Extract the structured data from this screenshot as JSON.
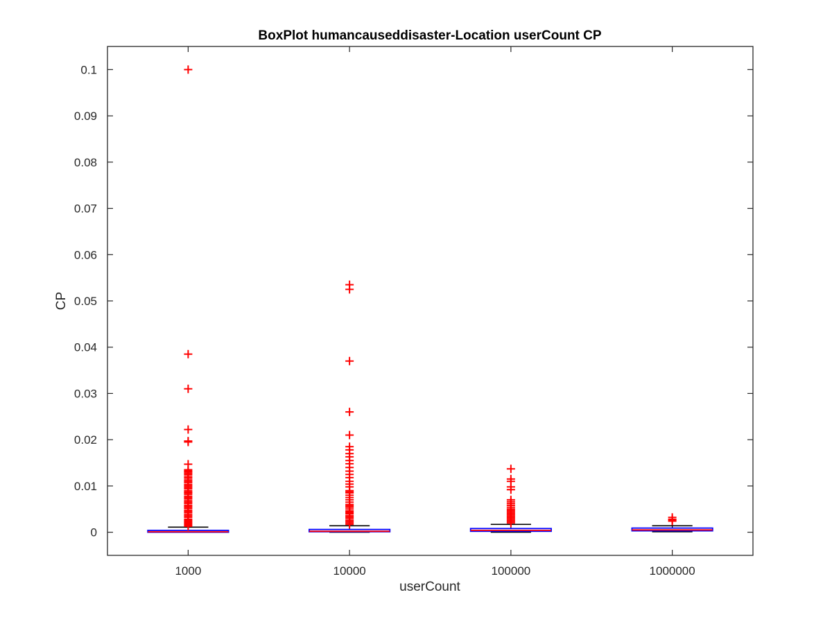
{
  "chart_data": {
    "type": "boxplot",
    "title": "BoxPlot humancauseddisaster-Location userCount CP",
    "xlabel": "userCount",
    "ylabel": "CP",
    "ylim": [
      -0.005,
      0.105
    ],
    "yticks": [
      "0",
      "0.01",
      "0.02",
      "0.03",
      "0.04",
      "0.05",
      "0.06",
      "0.07",
      "0.08",
      "0.09",
      "0.1"
    ],
    "categories": [
      "1000",
      "10000",
      "100000",
      "1000000"
    ],
    "grid": false,
    "colors": {
      "box": "#0000ff",
      "median": "#ff0000",
      "whisker": "#000000",
      "outlier": "#ff0000",
      "axis": "#262626"
    },
    "boxes": [
      {
        "category": "1000",
        "min": 0.0,
        "q1": 0.0,
        "median": 0.0001,
        "q3": 0.0004,
        "max": 0.0011,
        "outliers": [
          0.1,
          0.0385,
          0.031,
          0.0222,
          0.0197,
          0.0195,
          0.0147,
          0.0135,
          0.0132,
          0.013,
          0.0127,
          0.0124,
          0.012,
          0.0117,
          0.0113,
          0.011,
          0.0107,
          0.0103,
          0.01,
          0.0097,
          0.0094,
          0.009,
          0.0087,
          0.0085,
          0.0082,
          0.0078,
          0.0075,
          0.0072,
          0.0068,
          0.0065,
          0.0062,
          0.0058,
          0.0055,
          0.0052,
          0.0048,
          0.0045,
          0.0042,
          0.0038,
          0.0035,
          0.0032,
          0.0028,
          0.0025,
          0.0022,
          0.0019,
          0.0016,
          0.0013
        ]
      },
      {
        "category": "10000",
        "min": 0.0,
        "q1": 0.0001,
        "median": 0.0002,
        "q3": 0.0006,
        "max": 0.0014,
        "outliers": [
          0.0535,
          0.0525,
          0.037,
          0.026,
          0.021,
          0.0185,
          0.0178,
          0.017,
          0.0163,
          0.0155,
          0.0148,
          0.014,
          0.0132,
          0.0125,
          0.0118,
          0.011,
          0.0104,
          0.0098,
          0.009,
          0.0087,
          0.0085,
          0.008,
          0.0075,
          0.007,
          0.0065,
          0.006,
          0.0057,
          0.0054,
          0.005,
          0.0046,
          0.0043,
          0.004,
          0.0036,
          0.0033,
          0.003,
          0.0026,
          0.0023,
          0.002,
          0.0017
        ]
      },
      {
        "category": "100000",
        "min": 0.0,
        "q1": 0.0002,
        "median": 0.0004,
        "q3": 0.0008,
        "max": 0.0017,
        "outliers": [
          0.0137,
          0.0115,
          0.011,
          0.0098,
          0.0092,
          0.007,
          0.0066,
          0.0062,
          0.0058,
          0.0054,
          0.005,
          0.0047,
          0.0044,
          0.0041,
          0.0038,
          0.0035,
          0.0032,
          0.0029,
          0.0026,
          0.0023,
          0.002
        ]
      },
      {
        "category": "1000000",
        "min": 0.0001,
        "q1": 0.0003,
        "median": 0.0005,
        "q3": 0.0009,
        "max": 0.0014,
        "outliers": [
          0.0032,
          0.0028,
          0.0026,
          0.0024
        ]
      }
    ]
  }
}
